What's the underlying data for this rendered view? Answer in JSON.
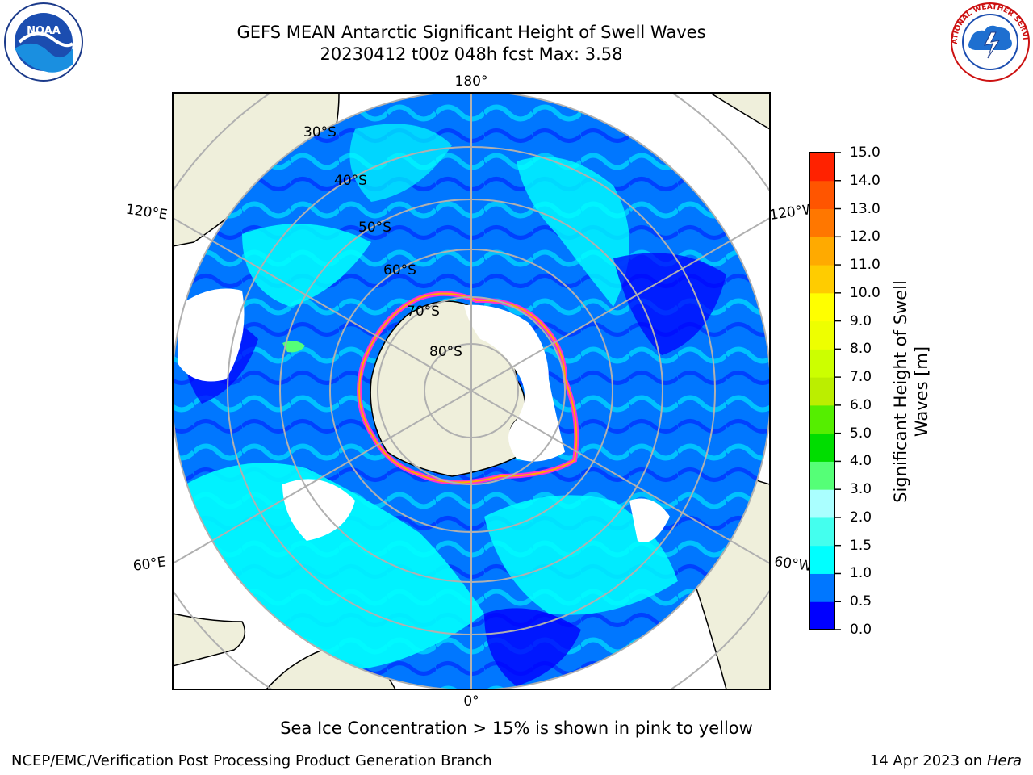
{
  "header": {
    "title_line1": "GEFS MEAN Antarctic Significant Height of Swell Waves",
    "title_line2": "20230412 t00z 048h fcst   Max: 3.58"
  },
  "logos": {
    "left": {
      "icon": "noaa-logo-icon",
      "text": "NOAA"
    },
    "right": {
      "icon": "national-weather-service-logo-icon",
      "text": "NATIONAL WEATHER SERVICE"
    }
  },
  "map": {
    "projection": "south-polar-stereographic",
    "longitude_labels": {
      "top": "180°",
      "bottom": "0°",
      "upper_left": "120°E",
      "upper_right": "120°W",
      "lower_left": "60°E",
      "lower_right": "60°W"
    },
    "latitude_labels": [
      "30°S",
      "40°S",
      "50°S",
      "60°S",
      "70°S",
      "80°S"
    ],
    "colors": {
      "ocean_base": "#0077ff",
      "land": "#efefdb",
      "coastline": "#000000",
      "graticule": "#b0b0b0",
      "sea_ice_edge": "#ff33cc",
      "sea_ice_inner": "#ffaa00"
    }
  },
  "colorbar": {
    "label": "Significant Height of Swell Waves [m]",
    "ticks": [
      "15.0",
      "14.0",
      "13.0",
      "12.0",
      "11.0",
      "10.0",
      "9.0",
      "8.0",
      "7.0",
      "6.0",
      "5.0",
      "4.0",
      "3.0",
      "2.0",
      "1.5",
      "1.0",
      "0.5",
      "0.0"
    ],
    "colors_bottom_to_top": [
      "#0000ff",
      "#0077ff",
      "#00ffff",
      "#44ffee",
      "#aaffff",
      "#55ff77",
      "#00dd00",
      "#55ee00",
      "#bbee00",
      "#ccff00",
      "#eeff00",
      "#ffff00",
      "#ffcc00",
      "#ffaa00",
      "#ff7700",
      "#ff5500",
      "#ff2200"
    ]
  },
  "footer": {
    "sea_ice_note": "Sea Ice Concentration > 15% is shown in pink to yellow",
    "credit": "NCEP/EMC/Verification Post Processing Product Generation Branch",
    "date": "14 Apr 2023 on",
    "date_machine": "Hera"
  }
}
